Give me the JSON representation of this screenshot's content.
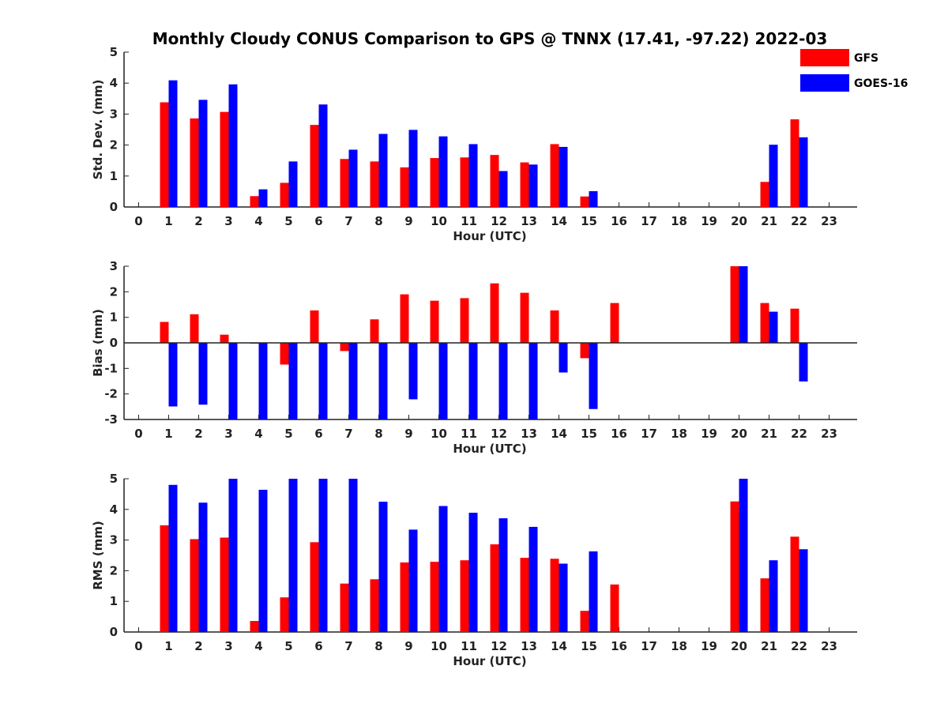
{
  "title": "Monthly Cloudy CONUS Comparison to GPS @ TNNX (17.41, -97.22) 2022-03",
  "legend": [
    {
      "name": "GFS",
      "color": "#ff0000"
    },
    {
      "name": "GOES-16",
      "color": "#0000ff"
    }
  ],
  "chart_data": [
    {
      "type": "bar",
      "xlabel": "Hour (UTC)",
      "ylabel": "Std. Dev. (mm)",
      "ylim": [
        0,
        5
      ],
      "yticks": [
        0,
        1,
        2,
        3,
        4,
        5
      ],
      "categories": [
        "0",
        "1",
        "2",
        "3",
        "4",
        "5",
        "6",
        "7",
        "8",
        "9",
        "10",
        "11",
        "12",
        "13",
        "14",
        "15",
        "16",
        "17",
        "18",
        "19",
        "20",
        "21",
        "22",
        "23"
      ],
      "series": [
        {
          "name": "GFS",
          "color": "#ff0000",
          "values": [
            null,
            3.38,
            2.86,
            3.07,
            0.35,
            0.78,
            2.65,
            1.55,
            1.47,
            1.28,
            1.58,
            1.6,
            1.68,
            1.44,
            2.03,
            0.34,
            null,
            null,
            null,
            null,
            null,
            0.81,
            2.83,
            null
          ]
        },
        {
          "name": "GOES-16",
          "color": "#0000ff",
          "values": [
            null,
            4.09,
            3.46,
            3.96,
            0.57,
            1.47,
            3.31,
            1.85,
            2.36,
            2.49,
            2.28,
            2.03,
            1.16,
            1.37,
            1.94,
            0.51,
            null,
            null,
            null,
            null,
            null,
            2.01,
            2.25,
            null
          ]
        }
      ]
    },
    {
      "type": "bar",
      "xlabel": "Hour (UTC)",
      "ylabel": "Bias (mm)",
      "ylim": [
        -3,
        3
      ],
      "yticks": [
        -3,
        -2,
        -1,
        0,
        1,
        2,
        3
      ],
      "zero_line": true,
      "categories": [
        "0",
        "1",
        "2",
        "3",
        "4",
        "5",
        "6",
        "7",
        "8",
        "9",
        "10",
        "11",
        "12",
        "13",
        "14",
        "15",
        "16",
        "17",
        "18",
        "19",
        "20",
        "21",
        "22",
        "23"
      ],
      "series": [
        {
          "name": "GFS",
          "color": "#ff0000",
          "values": [
            null,
            0.82,
            1.12,
            0.32,
            -0.03,
            -0.85,
            1.27,
            -0.32,
            0.92,
            1.9,
            1.65,
            1.75,
            2.33,
            1.96,
            1.27,
            -0.6,
            1.56,
            null,
            null,
            null,
            3.0,
            1.56,
            1.34,
            null
          ]
        },
        {
          "name": "GOES-16",
          "color": "#0000ff",
          "values": [
            null,
            -2.49,
            -2.42,
            -3.0,
            -3.0,
            -3.0,
            -3.0,
            -3.0,
            -3.0,
            -2.21,
            -3.0,
            -3.0,
            -3.0,
            -3.0,
            -1.16,
            -2.59,
            null,
            null,
            null,
            null,
            3.0,
            1.22,
            -1.51,
            null
          ]
        }
      ]
    },
    {
      "type": "bar",
      "xlabel": "Hour (UTC)",
      "ylabel": "RMS (mm)",
      "ylim": [
        0,
        5
      ],
      "yticks": [
        0,
        1,
        2,
        3,
        4,
        5
      ],
      "categories": [
        "0",
        "1",
        "2",
        "3",
        "4",
        "5",
        "6",
        "7",
        "8",
        "9",
        "10",
        "11",
        "12",
        "13",
        "14",
        "15",
        "16",
        "17",
        "18",
        "19",
        "20",
        "21",
        "22",
        "23"
      ],
      "series": [
        {
          "name": "GFS",
          "color": "#ff0000",
          "values": [
            null,
            3.48,
            3.03,
            3.08,
            0.36,
            1.13,
            2.93,
            1.58,
            1.72,
            2.27,
            2.29,
            2.34,
            2.86,
            2.42,
            2.39,
            0.69,
            1.55,
            null,
            null,
            null,
            4.26,
            1.75,
            3.11,
            null
          ]
        },
        {
          "name": "GOES-16",
          "color": "#0000ff",
          "values": [
            null,
            4.8,
            4.22,
            5.0,
            4.64,
            5.0,
            5.0,
            5.0,
            4.25,
            3.34,
            4.11,
            3.89,
            3.71,
            3.43,
            2.23,
            2.63,
            null,
            null,
            null,
            null,
            5.0,
            2.34,
            2.7,
            null
          ]
        }
      ]
    }
  ]
}
